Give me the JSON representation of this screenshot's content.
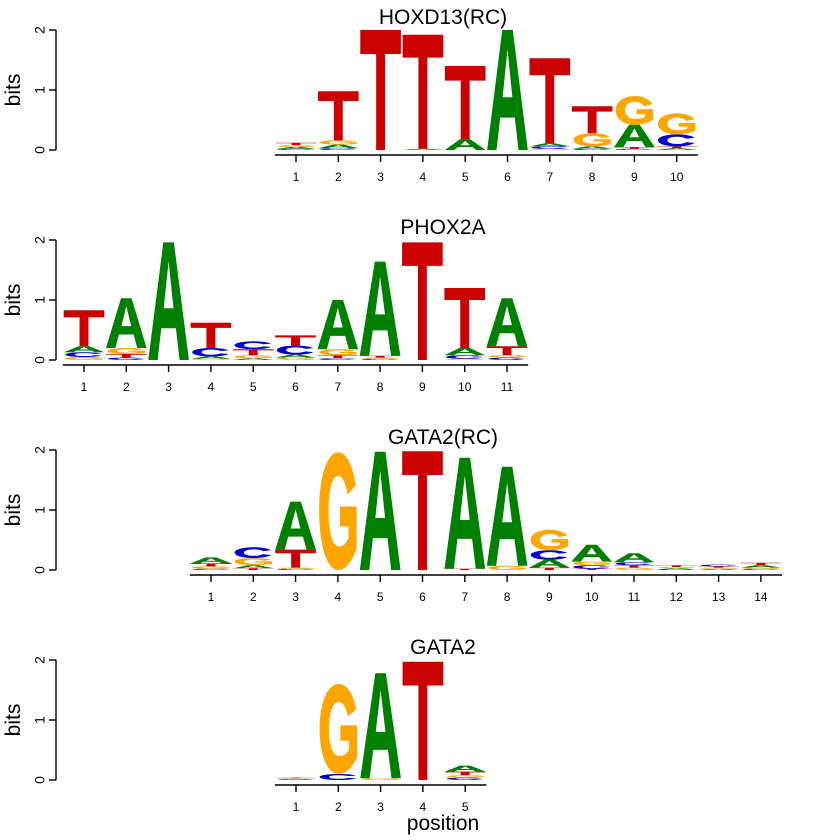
{
  "colors": {
    "A": "#008000",
    "C": "#0000CC",
    "G": "#FFA500",
    "T": "#CC0000",
    "axis": "#000000"
  },
  "chart_data": [
    {
      "type": "sequence-logo",
      "title": "HOXD13(RC)",
      "ylabel": "bits",
      "ylim": [
        0,
        2
      ],
      "yticks": [
        "0",
        "1",
        "2"
      ],
      "positions": [
        "1",
        "2",
        "3",
        "4",
        "5",
        "6",
        "7",
        "8",
        "9",
        "10"
      ],
      "columns": [
        {
          "A": 0.03,
          "C": 0.02,
          "G": 0.03,
          "T": 0.04
        },
        {
          "A": 0.06,
          "C": 0.03,
          "G": 0.07,
          "T": 0.82
        },
        {
          "A": 0.0,
          "C": 0.0,
          "G": 0.0,
          "T": 2.0
        },
        {
          "A": 0.02,
          "C": 0.0,
          "G": 0.0,
          "T": 1.9
        },
        {
          "A": 0.18,
          "C": 0.0,
          "G": 0.0,
          "T": 1.22
        },
        {
          "A": 2.0,
          "C": 0.0,
          "G": 0.0,
          "T": 0.0
        },
        {
          "A": 0.05,
          "C": 0.04,
          "G": 0.02,
          "T": 1.42
        },
        {
          "A": 0.04,
          "C": 0.02,
          "G": 0.22,
          "T": 0.45
        },
        {
          "A": 0.37,
          "C": 0.02,
          "G": 0.48,
          "T": 0.03
        },
        {
          "A": 0.03,
          "C": 0.2,
          "G": 0.35,
          "T": 0.03
        }
      ]
    },
    {
      "type": "sequence-logo",
      "title": "PHOX2A",
      "ylabel": "bits",
      "ylim": [
        0,
        2
      ],
      "yticks": [
        "0",
        "1",
        "2"
      ],
      "positions": [
        "1",
        "2",
        "3",
        "4",
        "5",
        "6",
        "7",
        "8",
        "9",
        "10",
        "11"
      ],
      "columns": [
        {
          "A": 0.1,
          "C": 0.08,
          "G": 0.05,
          "T": 0.6
        },
        {
          "A": 0.83,
          "C": 0.04,
          "G": 0.1,
          "T": 0.06
        },
        {
          "A": 1.96,
          "C": 0.0,
          "G": 0.0,
          "T": 0.0
        },
        {
          "A": 0.04,
          "C": 0.14,
          "G": 0.02,
          "T": 0.42
        },
        {
          "A": 0.03,
          "C": 0.13,
          "G": 0.05,
          "T": 0.1
        },
        {
          "A": 0.05,
          "C": 0.15,
          "G": 0.04,
          "T": 0.17
        },
        {
          "A": 0.82,
          "C": 0.03,
          "G": 0.1,
          "T": 0.05
        },
        {
          "A": 1.57,
          "C": 0.02,
          "G": 0.02,
          "T": 0.03
        },
        {
          "A": 0.0,
          "C": 0.0,
          "G": 0.0,
          "T": 1.96
        },
        {
          "A": 0.12,
          "C": 0.06,
          "G": 0.02,
          "T": 1.0
        },
        {
          "A": 0.8,
          "C": 0.04,
          "G": 0.04,
          "T": 0.15
        }
      ]
    },
    {
      "type": "sequence-logo",
      "title": "GATA2(RC)",
      "ylabel": "bits",
      "ylim": [
        0,
        2
      ],
      "yticks": [
        "0",
        "1",
        "2"
      ],
      "positions": [
        "1",
        "2",
        "3",
        "4",
        "5",
        "6",
        "7",
        "8",
        "9",
        "10",
        "11",
        "12",
        "13",
        "14"
      ],
      "columns": [
        {
          "A": 0.1,
          "C": 0.02,
          "G": 0.04,
          "T": 0.05
        },
        {
          "A": 0.05,
          "C": 0.18,
          "G": 0.12,
          "T": 0.03
        },
        {
          "A": 0.8,
          "C": 0.02,
          "G": 0.02,
          "T": 0.3
        },
        {
          "A": 0.0,
          "C": 0.0,
          "G": 1.96,
          "T": 0.0
        },
        {
          "A": 1.97,
          "C": 0.0,
          "G": 0.0,
          "T": 0.0
        },
        {
          "A": 0.0,
          "C": 0.0,
          "G": 0.0,
          "T": 1.98
        },
        {
          "A": 1.85,
          "C": 0.0,
          "G": 0.0,
          "T": 0.02
        },
        {
          "A": 1.65,
          "C": 0.0,
          "G": 0.07,
          "T": 0.0
        },
        {
          "A": 0.13,
          "C": 0.16,
          "G": 0.34,
          "T": 0.04
        },
        {
          "A": 0.28,
          "C": 0.06,
          "G": 0.06,
          "T": 0.02
        },
        {
          "A": 0.15,
          "C": 0.05,
          "G": 0.04,
          "T": 0.04
        },
        {
          "A": 0.02,
          "C": 0.01,
          "G": 0.02,
          "T": 0.03
        },
        {
          "A": 0.02,
          "C": 0.03,
          "G": 0.02,
          "T": 0.02
        },
        {
          "A": 0.04,
          "C": 0.02,
          "G": 0.02,
          "T": 0.04
        }
      ]
    },
    {
      "type": "sequence-logo",
      "title": "GATA2",
      "ylabel": "bits",
      "xlabel": "position",
      "ylim": [
        0,
        2
      ],
      "yticks": [
        "0",
        "1",
        "2"
      ],
      "positions": [
        "1",
        "2",
        "3",
        "4",
        "5"
      ],
      "columns": [
        {
          "A": 0.01,
          "C": 0.01,
          "G": 0.01,
          "T": 0.01
        },
        {
          "A": 0.0,
          "C": 0.1,
          "G": 1.5,
          "T": 0.0
        },
        {
          "A": 1.75,
          "C": 0.0,
          "G": 0.03,
          "T": 0.0
        },
        {
          "A": 0.0,
          "C": 0.0,
          "G": 0.0,
          "T": 1.97
        },
        {
          "A": 0.1,
          "C": 0.04,
          "G": 0.04,
          "T": 0.06
        }
      ]
    }
  ]
}
